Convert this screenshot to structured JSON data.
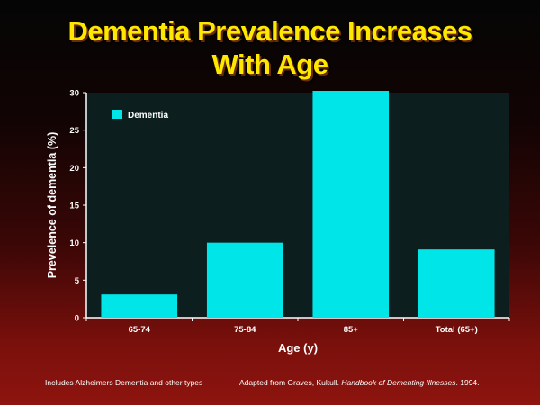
{
  "title_line1": "Dementia Prevalence Increases",
  "title_line2": "With Age",
  "chart_data": {
    "type": "bar",
    "title": "Dementia Prevalence Increases With Age",
    "categories": [
      "65-74",
      "75-84",
      "85+",
      "Total (65+)"
    ],
    "series": [
      {
        "name": "Dementia",
        "values": [
          3.1,
          10.0,
          31.0,
          9.1
        ]
      }
    ],
    "xlabel": "Age (y)",
    "ylabel": "Prevelence of dementia (%)",
    "ylim": [
      0,
      30
    ],
    "yticks": [
      0,
      5,
      10,
      15,
      20,
      25,
      30
    ],
    "legend": "top-left",
    "grid": false
  },
  "colors": {
    "bar": "#00e5e8",
    "plot_bg": "#0c1f1e",
    "axis_text": "#ffffff",
    "title": "#ffe800"
  },
  "footnote_left": "Includes Alzheimers Dementia and other types",
  "footnote_right_prefix": "Adapted from Graves, Kukull.",
  "footnote_right_italic": "Handbook of Dementing Illnesses",
  "footnote_right_suffix": ". 1994."
}
